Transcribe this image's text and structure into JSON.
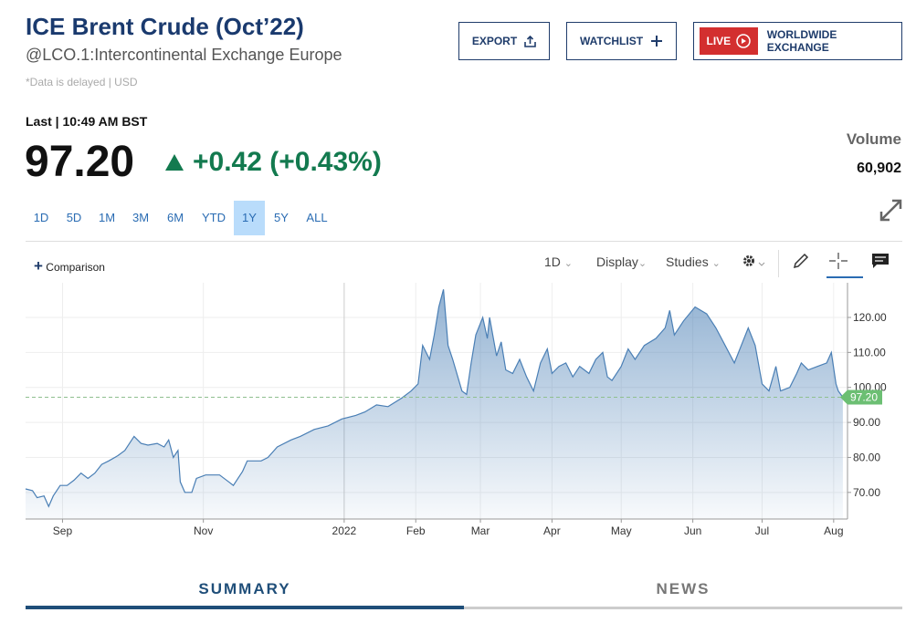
{
  "header": {
    "title": "ICE Brent Crude (Oct’22)",
    "exchange": "@LCO.1:Intercontinental Exchange Europe",
    "note": "*Data is delayed | USD"
  },
  "actions": {
    "export": "EXPORT",
    "watchlist": "WATCHLIST",
    "live": "LIVE",
    "exchange": "WORLDWIDE EXCHANGE"
  },
  "quote": {
    "last_label": "Last | 10:49 AM BST",
    "price": "97.20",
    "change": "+0.42",
    "change_percent": "(+0.43%)",
    "volume_label": "Volume",
    "volume": "60,902"
  },
  "ranges": [
    {
      "label": "1D",
      "selected": false
    },
    {
      "label": "5D",
      "selected": false
    },
    {
      "label": "1M",
      "selected": false
    },
    {
      "label": "3M",
      "selected": false
    },
    {
      "label": "6M",
      "selected": false
    },
    {
      "label": "YTD",
      "selected": false
    },
    {
      "label": "1Y",
      "selected": true
    },
    {
      "label": "5Y",
      "selected": false
    },
    {
      "label": "ALL",
      "selected": false
    }
  ],
  "toolbar": {
    "comparison": "Comparison",
    "interval": "1D",
    "display": "Display",
    "studies": "Studies"
  },
  "tabs": [
    {
      "label": "SUMMARY",
      "selected": true
    },
    {
      "label": "NEWS",
      "selected": false
    }
  ],
  "chart_data": {
    "type": "line",
    "area": true,
    "grid": true,
    "x": [
      15,
      18,
      20,
      23,
      25,
      27,
      30,
      33,
      36,
      39,
      42,
      45,
      48,
      51,
      55,
      58,
      62,
      65,
      68,
      72,
      75,
      77,
      79,
      81,
      82,
      84,
      87,
      89,
      93,
      99,
      103,
      105,
      109,
      111,
      117,
      120,
      124,
      130,
      134,
      140,
      146,
      152,
      158,
      162,
      167,
      172,
      178,
      182,
      185,
      187,
      190,
      192,
      194,
      196,
      198,
      200,
      204,
      206,
      208,
      210,
      213,
      215,
      216,
      219,
      221,
      223,
      226,
      229,
      232,
      235,
      238,
      241,
      243,
      246,
      249,
      252,
      255,
      259,
      262,
      265,
      267,
      269,
      273,
      276,
      279,
      283,
      288,
      292,
      294,
      296,
      300,
      305,
      310,
      314,
      318,
      322,
      325,
      328,
      331,
      334,
      337,
      340,
      342,
      346,
      349,
      351,
      354,
      358,
      362,
      364,
      366,
      367,
      369
    ],
    "series": [
      {
        "color": "#4a7fb5",
        "values": [
          71,
          70.5,
          68.5,
          69,
          66,
          69,
          72,
          72,
          73.5,
          75.5,
          74,
          75.5,
          78,
          79,
          80.5,
          82,
          86,
          84,
          83.5,
          84,
          83,
          85,
          80,
          82,
          73,
          70,
          70,
          74,
          75,
          75,
          73,
          72,
          76,
          79,
          79,
          80,
          83,
          85,
          86,
          88,
          89,
          91,
          92,
          93,
          95,
          94.5,
          97,
          99,
          101,
          112,
          108,
          115,
          123,
          128,
          112,
          108,
          99,
          98,
          107,
          115,
          120,
          114,
          120,
          109,
          113,
          105,
          104,
          108,
          103,
          99,
          107,
          111,
          104,
          106,
          107,
          103,
          106,
          104,
          108,
          110,
          103,
          102,
          106,
          111,
          108,
          112,
          114,
          117,
          122,
          115,
          119,
          123,
          121,
          117,
          112,
          107,
          112,
          117,
          112,
          101,
          99,
          106,
          99,
          100,
          104,
          107,
          105,
          106,
          107,
          110,
          101,
          99,
          97.2
        ]
      }
    ],
    "xlim": [
      15,
      371
    ],
    "xticks": [
      {
        "value": 31,
        "label": "Sep"
      },
      {
        "value": 92,
        "label": "Nov"
      },
      {
        "value": 153,
        "label": "2022"
      },
      {
        "value": 184,
        "label": "Feb"
      },
      {
        "value": 212,
        "label": "Mar"
      },
      {
        "value": 243,
        "label": "Apr"
      },
      {
        "value": 273,
        "label": "May"
      },
      {
        "value": 304,
        "label": "Jun"
      },
      {
        "value": 334,
        "label": "Jul"
      },
      {
        "value": 365,
        "label": "Aug"
      }
    ],
    "ylim": [
      62.4,
      129.9
    ],
    "yticks": [
      {
        "value": 70,
        "label": "70.00"
      },
      {
        "value": 80,
        "label": "80.00"
      },
      {
        "value": 90,
        "label": "90.00"
      },
      {
        "value": 100,
        "label": "100.00"
      },
      {
        "value": 110,
        "label": "110.00"
      },
      {
        "value": 120,
        "label": "120.00"
      }
    ]
  }
}
